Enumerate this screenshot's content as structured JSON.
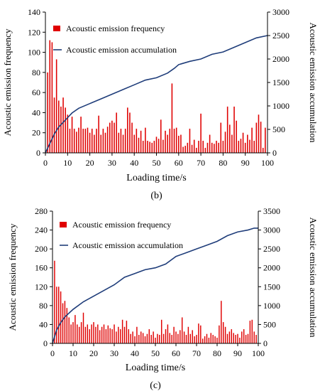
{
  "chart_data": [
    {
      "type": "bar",
      "panel_label": "(b)",
      "xlabel": "Loading time/s",
      "ylabel": "Acoustic emission frequency",
      "y2label": "Acoustic emission accumulation",
      "xlim": [
        0,
        100
      ],
      "xticks": [
        0,
        10,
        20,
        30,
        40,
        50,
        60,
        70,
        80,
        90,
        100
      ],
      "ylim": [
        0,
        140
      ],
      "yticks": [
        0,
        20,
        40,
        60,
        80,
        100,
        120,
        140
      ],
      "y2lim": [
        0,
        3000
      ],
      "y2ticks": [
        0,
        500,
        1000,
        1500,
        2000,
        2500,
        3000
      ],
      "legend": [
        {
          "label": "Acoustic emission frequency",
          "kind": "bar",
          "color": "#e00000"
        },
        {
          "label": "Acoustic emission accumulation",
          "kind": "line",
          "color": "#1f3d7a"
        }
      ],
      "legend_placement": "top-left",
      "series": [
        {
          "name": "Acoustic emission frequency",
          "kind": "bar",
          "axis": "left",
          "color": "#e00000",
          "x": [
            1,
            2,
            3,
            4,
            5,
            6,
            7,
            8,
            9,
            10,
            11,
            12,
            13,
            14,
            15,
            16,
            17,
            18,
            19,
            20,
            21,
            22,
            23,
            24,
            25,
            26,
            27,
            28,
            29,
            30,
            31,
            32,
            33,
            34,
            35,
            36,
            37,
            38,
            39,
            40,
            41,
            42,
            43,
            44,
            45,
            46,
            47,
            48,
            49,
            50,
            51,
            52,
            53,
            54,
            55,
            56,
            57,
            58,
            59,
            60,
            61,
            62,
            63,
            64,
            65,
            66,
            67,
            68,
            69,
            70,
            71,
            72,
            73,
            74,
            75,
            76,
            77,
            78,
            79,
            80,
            81,
            82,
            83,
            84,
            85,
            86,
            87,
            88,
            89,
            90,
            91,
            92,
            93,
            94,
            95,
            96,
            97,
            98,
            99
          ],
          "values": [
            80,
            112,
            110,
            55,
            93,
            52,
            46,
            55,
            45,
            38,
            24,
            36,
            24,
            21,
            25,
            36,
            24,
            24,
            25,
            20,
            24,
            18,
            24,
            37,
            18,
            24,
            20,
            26,
            30,
            32,
            30,
            40,
            20,
            24,
            18,
            24,
            45,
            40,
            30,
            18,
            24,
            15,
            22,
            12,
            25,
            12,
            11,
            10,
            12,
            16,
            14,
            33,
            13,
            22,
            18,
            24,
            69,
            24,
            25,
            17,
            18,
            6,
            7,
            10,
            24,
            8,
            13,
            5,
            12,
            39,
            12,
            5,
            10,
            18,
            10,
            9,
            12,
            10,
            30,
            12,
            21,
            46,
            28,
            18,
            46,
            32,
            12,
            14,
            20,
            10,
            18,
            13,
            25,
            12,
            30,
            38,
            31,
            5,
            25
          ]
        },
        {
          "name": "Acoustic emission accumulation",
          "kind": "line",
          "axis": "right",
          "color": "#1f3d7a",
          "x": [
            0,
            2,
            4,
            6,
            8,
            10,
            12,
            15,
            20,
            25,
            30,
            35,
            40,
            45,
            50,
            55,
            58,
            60,
            65,
            70,
            75,
            80,
            85,
            90,
            95,
            100
          ],
          "values": [
            0,
            200,
            400,
            550,
            650,
            750,
            850,
            950,
            1050,
            1150,
            1250,
            1350,
            1450,
            1550,
            1600,
            1700,
            1800,
            1880,
            1950,
            2000,
            2100,
            2150,
            2250,
            2350,
            2450,
            2500
          ]
        }
      ]
    },
    {
      "type": "bar",
      "panel_label": "(c)",
      "xlabel": "Loading time/s",
      "ylabel": "Acoustic emission frequency",
      "y2label": "Acoustic emission accumulation",
      "xlim": [
        0,
        100
      ],
      "xticks": [
        0,
        10,
        20,
        30,
        40,
        50,
        60,
        70,
        80,
        90,
        100
      ],
      "ylim": [
        0,
        280
      ],
      "yticks": [
        0,
        40,
        80,
        120,
        160,
        200,
        240,
        280
      ],
      "y2lim": [
        0,
        3500
      ],
      "y2ticks": [
        0,
        500,
        1000,
        1500,
        2000,
        2500,
        3000,
        3500
      ],
      "legend": [
        {
          "label": "Acoustic emission frequency",
          "kind": "bar",
          "color": "#e00000"
        },
        {
          "label": "Acoustic emission accumulation",
          "kind": "line",
          "color": "#1f3d7a"
        }
      ],
      "legend_placement": "top-left",
      "series": [
        {
          "name": "Acoustic emission frequency",
          "kind": "bar",
          "axis": "left",
          "color": "#e00000",
          "x": [
            1,
            2,
            3,
            4,
            5,
            6,
            7,
            8,
            9,
            10,
            11,
            12,
            13,
            14,
            15,
            16,
            17,
            18,
            19,
            20,
            21,
            22,
            23,
            24,
            25,
            26,
            27,
            28,
            29,
            30,
            31,
            32,
            33,
            34,
            35,
            36,
            37,
            38,
            39,
            40,
            41,
            42,
            43,
            44,
            45,
            46,
            47,
            48,
            49,
            50,
            51,
            52,
            53,
            54,
            55,
            56,
            57,
            58,
            59,
            60,
            61,
            62,
            63,
            64,
            65,
            66,
            67,
            68,
            69,
            70,
            71,
            72,
            73,
            74,
            75,
            76,
            77,
            78,
            79,
            80,
            81,
            82,
            83,
            84,
            85,
            86,
            87,
            88,
            89,
            90,
            91,
            92,
            93,
            94,
            95,
            96,
            97,
            98,
            99
          ],
          "values": [
            175,
            120,
            120,
            110,
            85,
            90,
            75,
            55,
            40,
            45,
            60,
            40,
            35,
            45,
            65,
            35,
            40,
            30,
            40,
            45,
            35,
            40,
            28,
            35,
            40,
            30,
            38,
            32,
            30,
            40,
            25,
            35,
            30,
            50,
            35,
            48,
            30,
            20,
            25,
            15,
            35,
            18,
            25,
            22,
            15,
            20,
            30,
            18,
            25,
            12,
            20,
            18,
            50,
            20,
            30,
            40,
            22,
            18,
            35,
            25,
            20,
            28,
            55,
            25,
            18,
            35,
            20,
            28,
            15,
            18,
            42,
            38,
            10,
            15,
            20,
            12,
            22,
            18,
            15,
            12,
            38,
            90,
            45,
            35,
            20,
            25,
            30,
            22,
            18,
            20,
            12,
            25,
            30,
            18,
            20,
            48,
            50,
            25,
            18
          ]
        },
        {
          "name": "Acoustic emission accumulation",
          "kind": "line",
          "axis": "right",
          "color": "#1f3d7a",
          "x": [
            0,
            2,
            4,
            6,
            8,
            10,
            15,
            20,
            25,
            30,
            35,
            40,
            45,
            50,
            55,
            60,
            65,
            70,
            75,
            80,
            85,
            90,
            95,
            98,
            100
          ],
          "values": [
            0,
            350,
            550,
            700,
            800,
            900,
            1100,
            1250,
            1400,
            1550,
            1750,
            1850,
            1950,
            2000,
            2100,
            2300,
            2400,
            2500,
            2600,
            2700,
            2850,
            2950,
            3000,
            3050,
            3050
          ]
        }
      ]
    }
  ]
}
